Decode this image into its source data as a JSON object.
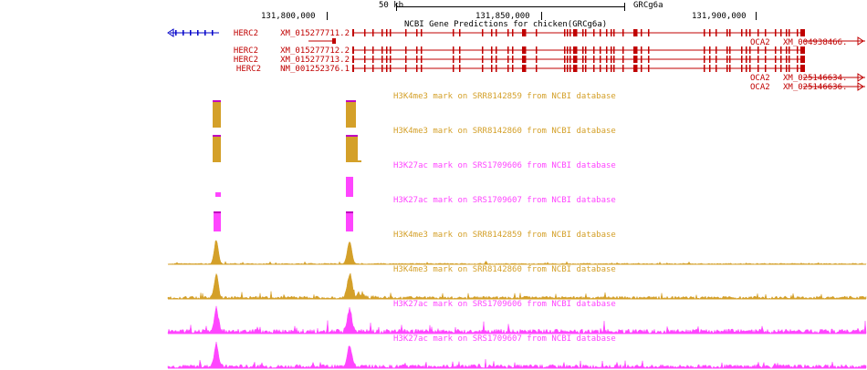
{
  "ruler": {
    "scale_label": "50 kb",
    "assembly": "GRCg6a",
    "positions": [
      "131,800,000",
      "131,850,000",
      "131,900,000"
    ],
    "track_title": "NCBI Gene Predictions for chicken(GRCg6a)"
  },
  "colors": {
    "gene": "#c00000",
    "gene_blue": "#0000c8",
    "h3k4me3": "#d4a029",
    "h3k27ac": "#ff45ff",
    "cap": "#c000c0"
  },
  "genes": [
    {
      "symbol": "HERC2",
      "accession": "XM_015277711.2"
    },
    {
      "symbol": "HERC2",
      "accession": "XM_015277712.2"
    },
    {
      "symbol": "HERC2",
      "accession": "XM_015277713.2"
    },
    {
      "symbol": "HERC2",
      "accession": "NM_001252376.1"
    }
  ],
  "right_genes": [
    {
      "symbol": "OCA2",
      "accession": "XM_004938466."
    },
    {
      "symbol": "OCA2",
      "accession": "XM_025146634."
    },
    {
      "symbol": "OCA2",
      "accession": "XM_025146636."
    }
  ],
  "tracks": [
    {
      "title": "H3K4me3 mark on SRR8142859 from NCBI database",
      "mark": "h3k4me3",
      "style": "peaks"
    },
    {
      "title": "H3K4me3 mark on SRR8142860 from NCBI database",
      "mark": "h3k4me3",
      "style": "peaks"
    },
    {
      "title": "H3K27ac mark on SRS1709606 from NCBI database",
      "mark": "h3k27ac",
      "style": "peaks"
    },
    {
      "title": "H3K27ac mark on SRS1709607 from NCBI database",
      "mark": "h3k27ac",
      "style": "peaks"
    },
    {
      "title": "H3K4me3 mark on SRR8142859 from NCBI database",
      "mark": "h3k4me3",
      "style": "signal"
    },
    {
      "title": "H3K4me3 mark on SRR8142860 from NCBI database",
      "mark": "h3k4me3",
      "style": "signal"
    },
    {
      "title": "H3K27ac mark on SRS1709606 from NCBI database",
      "mark": "h3k27ac",
      "style": "signal"
    },
    {
      "title": "H3K27ac mark on SRS1709607 from NCBI database",
      "mark": "h3k27ac",
      "style": "signal"
    }
  ]
}
